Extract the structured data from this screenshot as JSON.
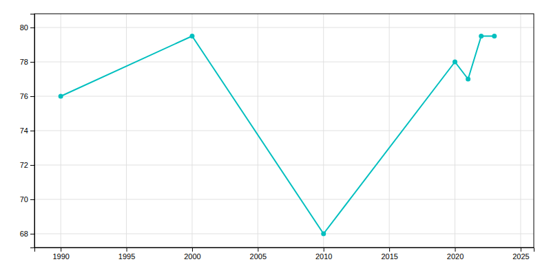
{
  "chart_data": {
    "type": "line",
    "x": [
      1990,
      2000,
      2010,
      2020,
      2021,
      2022,
      2023
    ],
    "values": [
      76,
      79.5,
      68,
      78,
      77,
      79.5,
      79.5
    ],
    "color": "#00BFBF",
    "marker": "circle",
    "xlim": [
      1988,
      2026
    ],
    "ylim": [
      67.2,
      80.8
    ],
    "xticks": [
      1990,
      1995,
      2000,
      2005,
      2010,
      2015,
      2020,
      2025
    ],
    "yticks": [
      68,
      70,
      72,
      74,
      76,
      78,
      80
    ],
    "grid": true
  }
}
